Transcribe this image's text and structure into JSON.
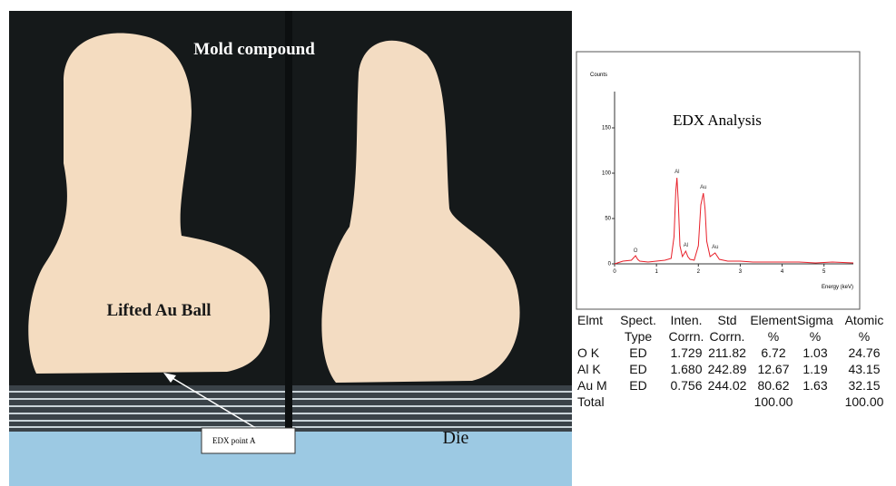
{
  "image": {
    "labels": [
      "Mold compound",
      "Lifted Au Ball",
      "EDX point  A",
      "Die"
    ]
  },
  "chart_data": {
    "type": "line",
    "title": "EDX Analysis",
    "y_label": "Counts",
    "x_label": "Energy (keV)",
    "xlim": [
      0,
      5.7
    ],
    "ylim": [
      0,
      190
    ],
    "xticks": [
      0,
      1,
      2,
      3,
      4,
      5
    ],
    "yticks": [
      0,
      50,
      100,
      150
    ],
    "series": [
      {
        "color": "#e8202a",
        "x": [
          0,
          0.2,
          0.4,
          0.5,
          0.55,
          0.6,
          0.8,
          1.0,
          1.2,
          1.35,
          1.42,
          1.46,
          1.49,
          1.52,
          1.56,
          1.62,
          1.7,
          1.75,
          1.8,
          1.9,
          2.0,
          2.06,
          2.12,
          2.16,
          2.2,
          2.28,
          2.4,
          2.5,
          2.7,
          3.0,
          3.3,
          3.6,
          4.0,
          4.4,
          4.8,
          5.2,
          5.7
        ],
        "values": [
          0,
          3,
          4,
          9,
          5,
          3,
          2,
          3,
          4,
          6,
          30,
          80,
          95,
          70,
          20,
          8,
          14,
          8,
          5,
          4,
          20,
          65,
          78,
          60,
          25,
          8,
          12,
          5,
          3,
          3,
          2,
          2,
          2,
          2,
          1,
          2,
          1
        ]
      }
    ],
    "annotations": [
      {
        "text": "O",
        "x": 0.5,
        "y": 10
      },
      {
        "text": "Al",
        "x": 1.49,
        "y": 97
      },
      {
        "text": "Al",
        "x": 1.7,
        "y": 16
      },
      {
        "text": "Au",
        "x": 2.12,
        "y": 80
      },
      {
        "text": "Au",
        "x": 2.4,
        "y": 14
      }
    ]
  },
  "table": {
    "header": [
      [
        "Elmt",
        "Spect.",
        "Inten.",
        "Std",
        "Element",
        "Sigma",
        "Atomic"
      ],
      [
        null,
        "Type",
        "Corrn.",
        "Corrn.",
        "%",
        "%",
        "%"
      ]
    ],
    "rows": [
      [
        "O K",
        "ED",
        "1.729",
        "211.82",
        "6.72",
        "1.03",
        "24.76"
      ],
      [
        "Al K",
        "ED",
        "1.680",
        "242.89",
        "12.67",
        "1.19",
        "43.15"
      ],
      [
        "Au M",
        "ED",
        "0.756",
        "244.02",
        "80.62",
        "1.63",
        "32.15"
      ],
      [
        "Total",
        null,
        null,
        null,
        "100.00",
        null,
        "100.00"
      ]
    ]
  }
}
